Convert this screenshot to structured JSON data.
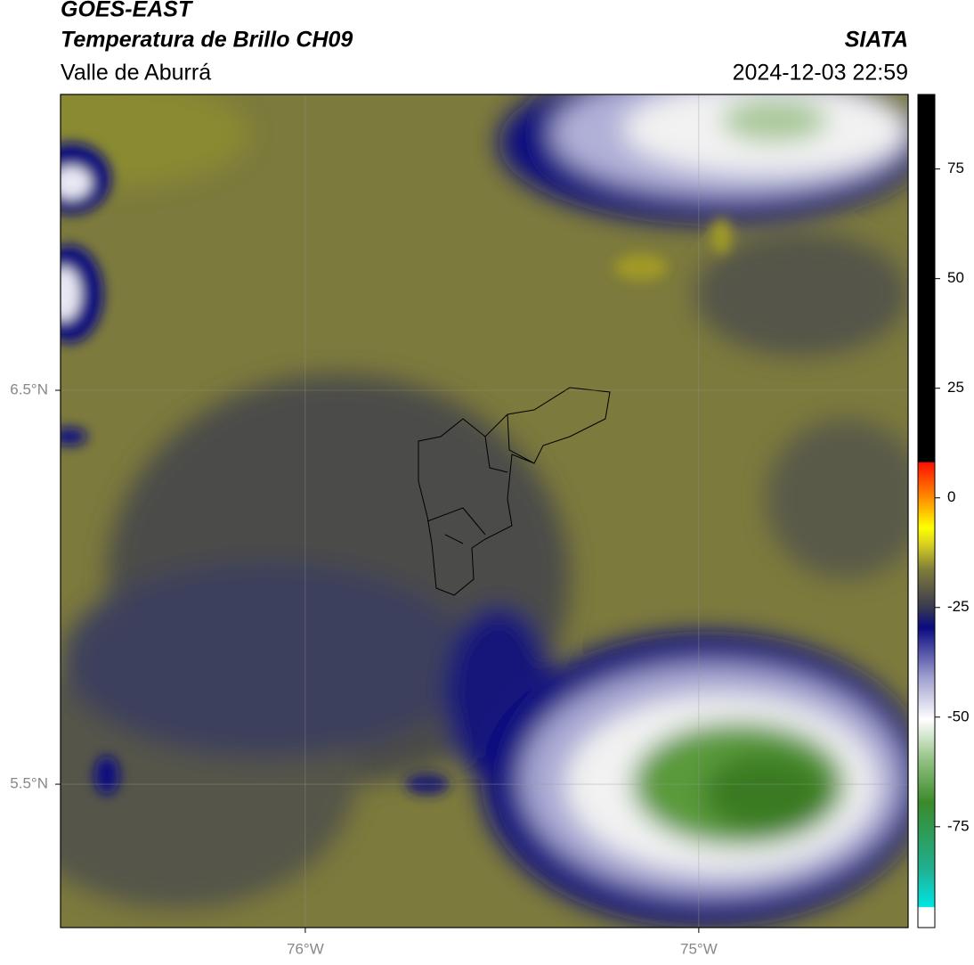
{
  "header": {
    "satellite": "GOES-EAST",
    "product": "Temperatura de Brillo CH09",
    "source": "SIATA",
    "region": "Valle de Aburrá",
    "datetime": "2024-12-03 22:59"
  },
  "map": {
    "lonlim": [
      -76.622,
      -74.468
    ],
    "latlim": [
      5.136,
      7.251
    ],
    "xticks": [
      {
        "value": -76,
        "label": "76°W"
      },
      {
        "value": -75,
        "label": "75°W"
      }
    ],
    "yticks": [
      {
        "value": 6.5,
        "label": "6.5°N"
      },
      {
        "value": 5.5,
        "label": "5.5°N"
      }
    ],
    "grid": true
  },
  "colorbar": {
    "lim": [
      -98,
      92
    ],
    "ticks": [
      75,
      50,
      25,
      0,
      -25,
      -50,
      -75
    ]
  }
}
